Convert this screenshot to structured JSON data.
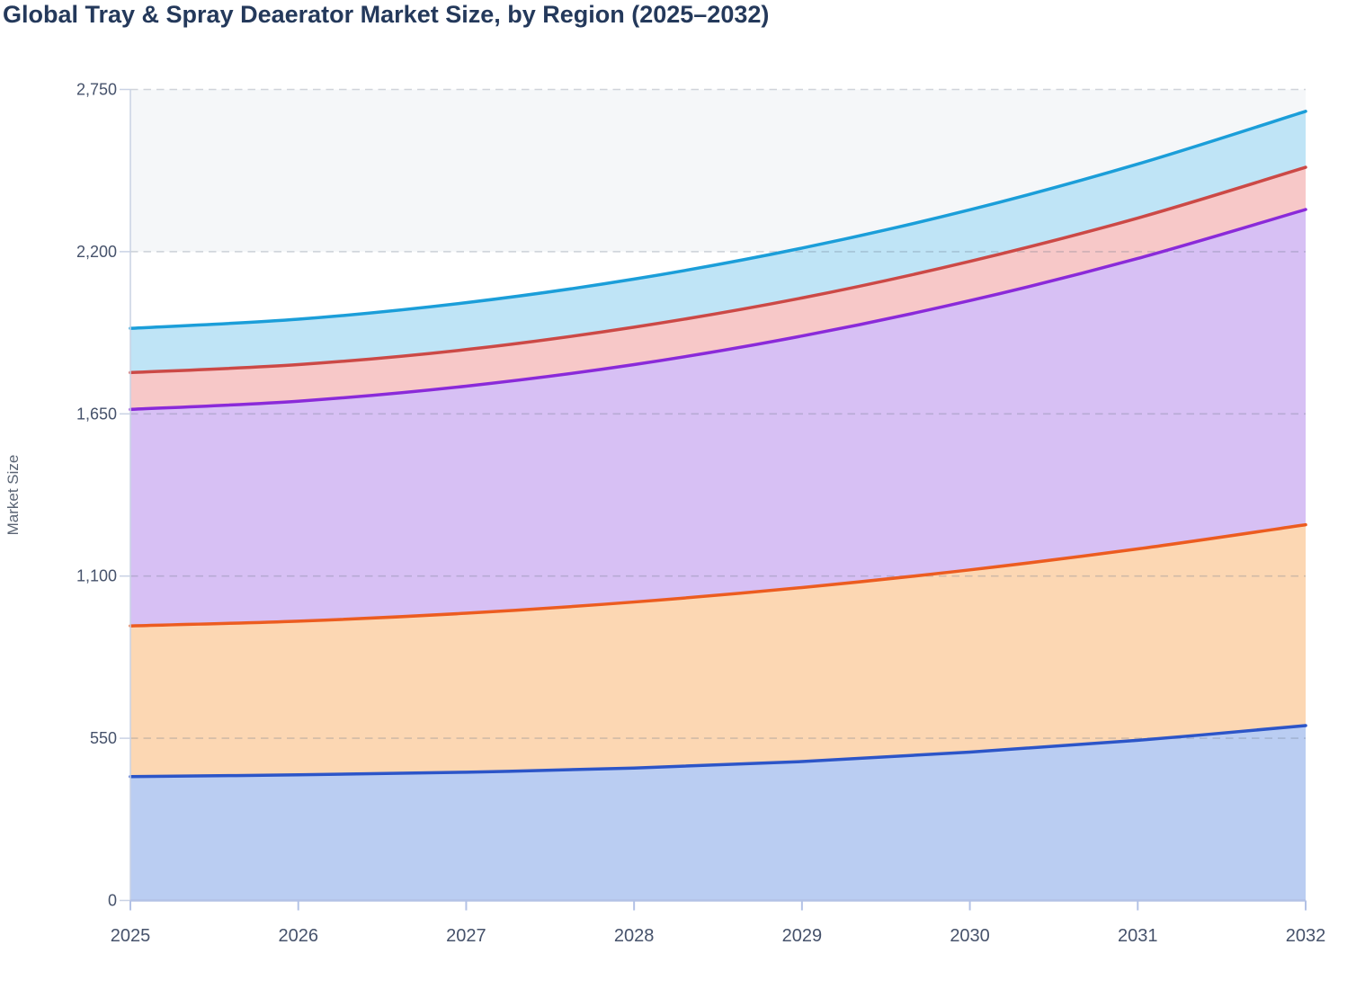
{
  "title": "Global Tray & Spray Deaerator Market Size, by Region (2025–2032)",
  "chart_data": {
    "type": "area",
    "stacked": true,
    "title": "Global Tray & Spray Deaerator Market Size, by Region (2025–2032)",
    "xlabel": "",
    "ylabel": "Market Size",
    "x": [
      2025,
      2026,
      2027,
      2028,
      2029,
      2030,
      2031,
      2032
    ],
    "x_tick_labels": [
      "2025",
      "2026",
      "2027",
      "2028",
      "2029",
      "2030",
      "2031",
      "2032"
    ],
    "ylim": [
      0,
      2750
    ],
    "yticks": [
      0,
      550,
      1100,
      1650,
      2200,
      2750
    ],
    "ytick_labels": [
      "0",
      "550",
      "1,100",
      "1,650",
      "2,200",
      "2,750"
    ],
    "grid": "horizontal-dashed",
    "legend": "none",
    "series": [
      {
        "name": "series-blue-bottom",
        "stroke": "#2c55c8",
        "fill": "#bacdf2",
        "values": [
          420,
          426,
          435,
          449,
          471,
          503,
          543,
          593
        ]
      },
      {
        "name": "series-orange",
        "stroke": "#ec5c20",
        "fill": "#fcd7b3",
        "values": [
          511,
          521,
          539,
          563,
          590,
          618,
          649,
          681
        ]
      },
      {
        "name": "series-purple",
        "stroke": "#8a2ad9",
        "fill": "#d7c0f4",
        "values": [
          734,
          746,
          770,
          805,
          853,
          913,
          985,
          1069
        ]
      },
      {
        "name": "series-red",
        "stroke": "#cc4946",
        "fill": "#f7c8c8",
        "values": [
          125,
          124,
          124,
          127,
          129,
          133,
          137,
          143
        ]
      },
      {
        "name": "series-cyan-top",
        "stroke": "#1b9ed9",
        "fill": "#bfe4f6",
        "values": [
          150,
          154,
          159,
          163,
          169,
          175,
          183,
          190
        ]
      }
    ],
    "stacked_totals": [
      1940,
      1971,
      2027,
      2107,
      2212,
      2342,
      2497,
      2676
    ]
  },
  "style": {
    "title_color": "#24395b",
    "tick_label_color": "#46526b",
    "axis_title_color": "#5a6474",
    "gridline_color_rgba": "rgba(108,118,140,0.30)",
    "top_band_fill": "#f5f7f9",
    "y_axis_line_color": "#c9d2e4",
    "x_axis_line_color": "#b3c2e6",
    "plot_background": "#ffffff"
  }
}
